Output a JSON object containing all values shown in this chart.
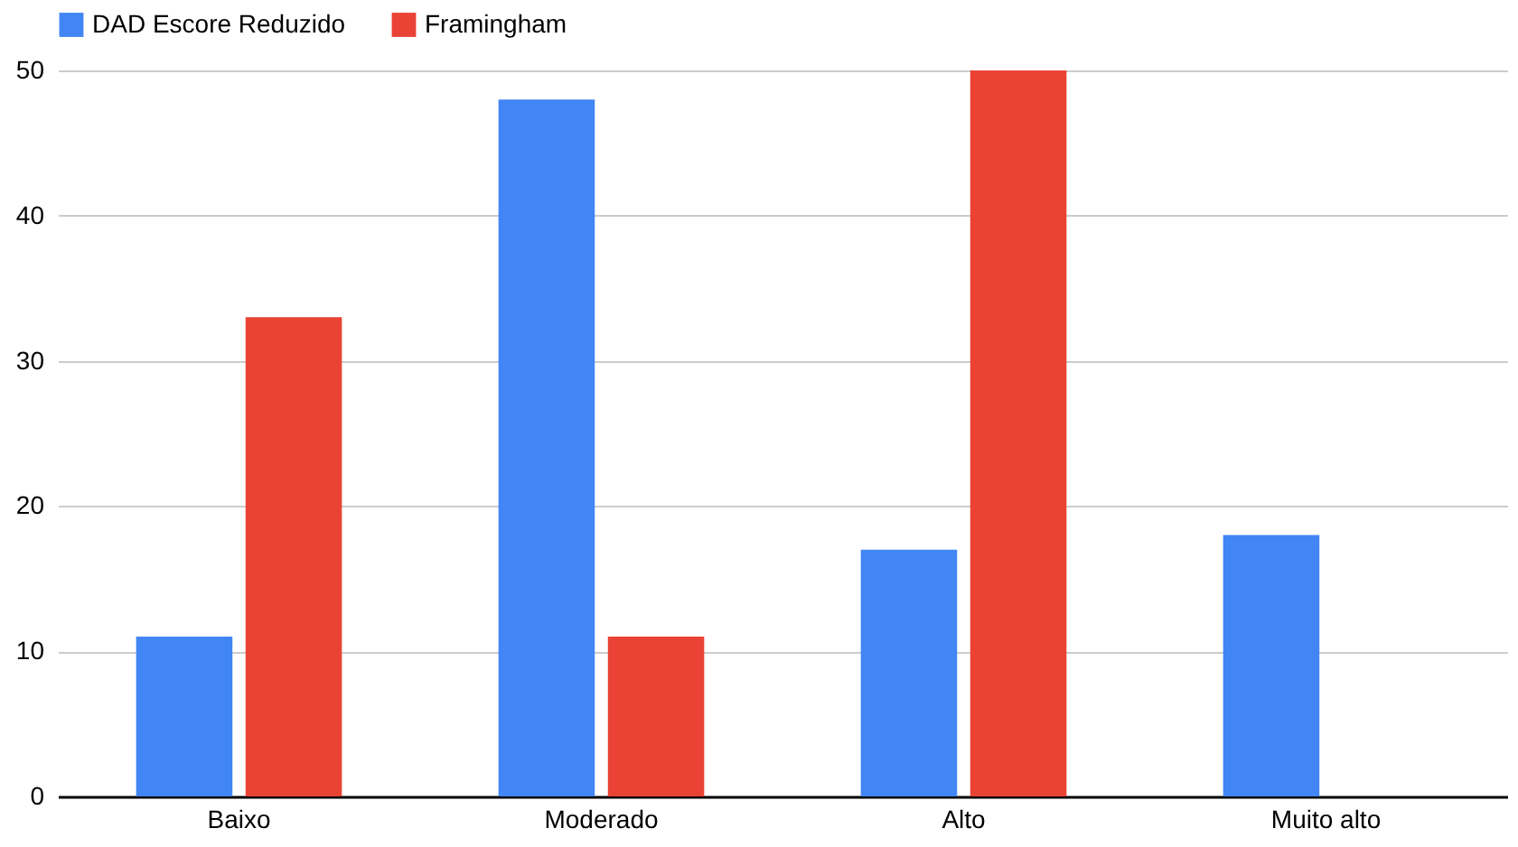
{
  "chart_data": {
    "type": "bar",
    "categories": [
      "Baixo",
      "Moderado",
      "Alto",
      "Muito alto"
    ],
    "series": [
      {
        "name": "DAD Escore Reduzido",
        "color": "#4285f4",
        "values": [
          11,
          48,
          17,
          18
        ]
      },
      {
        "name": "Framingham",
        "color": "#ea4335",
        "values": [
          33,
          11,
          50,
          null
        ]
      }
    ],
    "ylim": [
      0,
      50
    ],
    "yticks": [
      0,
      10,
      20,
      30,
      40,
      50
    ],
    "grid": "y",
    "legend": "top"
  }
}
